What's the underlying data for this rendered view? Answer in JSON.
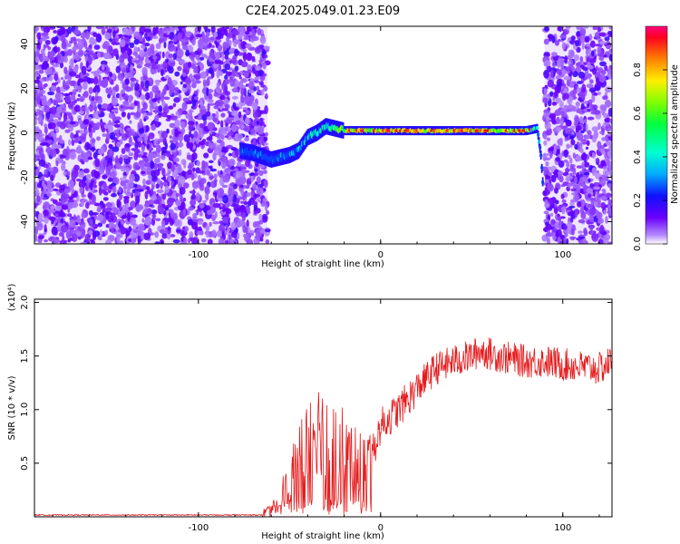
{
  "title": "C2E4.2025.049.01.23.E09",
  "spectrogram": {
    "xlabel": "Height of straight line (km)",
    "ylabel": "Frequency (Hz)",
    "xticks": [
      -100,
      0,
      100
    ],
    "yticks": [
      -40,
      -20,
      0,
      20,
      40
    ],
    "xlim": [
      -190,
      127
    ],
    "ylim": [
      -50,
      48
    ],
    "colorbar": {
      "label": "Normalized spectral amplitude",
      "ticks": [
        "0.0",
        "0.2",
        "0.4",
        "0.6",
        "0.8"
      ],
      "range": [
        0,
        1
      ]
    }
  },
  "chart_data": [
    {
      "type": "heatmap",
      "title": "C2E4.2025.049.01.23.E09",
      "xlabel": "Height of straight line (km)",
      "ylabel": "Frequency (Hz)",
      "xlim": [
        -190,
        127
      ],
      "ylim": [
        -50,
        48
      ],
      "colorscale": "rainbow (purple-blue-cyan-green-yellow-red)",
      "noise_regions_km": [
        [
          -190,
          -62
        ],
        [
          90,
          127
        ]
      ],
      "signal_track": {
        "x": [
          -77,
          -70,
          -60,
          -50,
          -45,
          -40,
          -35,
          -30,
          -25,
          -20,
          -10,
          0,
          20,
          40,
          60,
          80,
          86,
          88,
          89
        ],
        "frequency_hz": [
          -8,
          -9,
          -12,
          -10,
          -8,
          -2,
          0,
          3,
          2,
          1,
          1,
          1,
          1,
          1,
          1,
          1,
          2,
          -10,
          -22
        ],
        "peak_amplitude": [
          0.3,
          0.35,
          0.3,
          0.4,
          0.45,
          0.5,
          0.55,
          0.6,
          0.65,
          0.8,
          0.85,
          0.9,
          0.9,
          0.9,
          0.9,
          0.8,
          0.5,
          0.3,
          0.2
        ]
      }
    },
    {
      "type": "line",
      "xlabel": "Height of straight line (km)",
      "ylabel": "SNR (10 * v/v)",
      "y_multiplier": "(x10⁴)",
      "xlim": [
        -190,
        127
      ],
      "ylim": [
        0,
        2.03
      ],
      "xticks": [
        -100,
        0,
        100
      ],
      "yticks": [
        "0.5",
        "1.0",
        "1.5",
        "2.0"
      ],
      "color": "#e41a1c",
      "x": [
        -190,
        -150,
        -100,
        -70,
        -60,
        -50,
        -45,
        -40,
        -35,
        -30,
        -25,
        -20,
        -10,
        -5,
        0,
        10,
        20,
        30,
        40,
        50,
        55,
        60,
        70,
        80,
        90,
        100,
        110,
        120,
        127
      ],
      "y": [
        0.0,
        0.0,
        0.0,
        0.01,
        0.05,
        0.35,
        0.55,
        0.75,
        0.85,
        0.8,
        0.75,
        0.65,
        0.5,
        0.55,
        0.85,
        1.0,
        1.2,
        1.38,
        1.45,
        1.5,
        1.55,
        1.52,
        1.48,
        1.45,
        1.45,
        1.42,
        1.4,
        1.38,
        1.45
      ]
    }
  ]
}
